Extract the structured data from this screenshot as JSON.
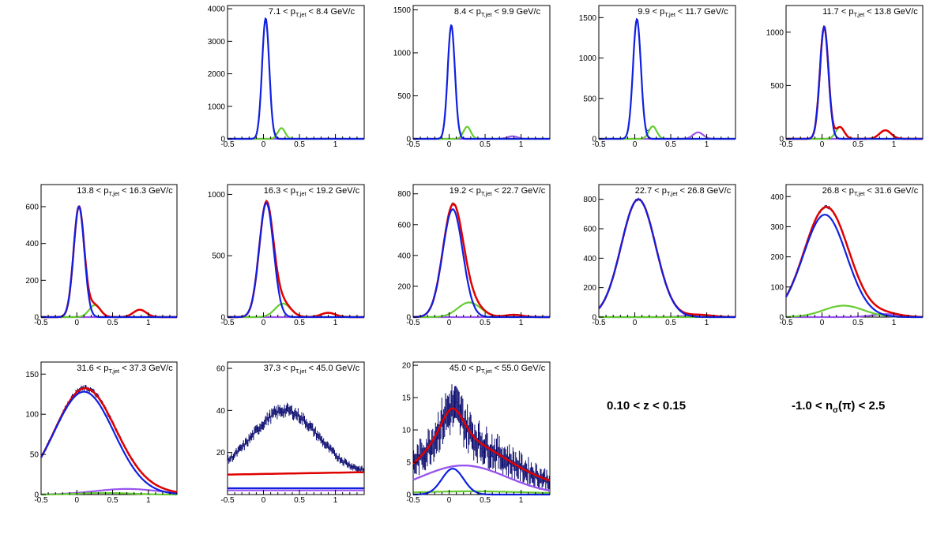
{
  "annotations": {
    "z_range": "0.10 < z < 0.15",
    "nsigma_left": "-1.0 < n",
    "nsigma_sub": "σ",
    "nsigma_right": "(π) < 2.5"
  },
  "colors": {
    "data": "#0a0a6e",
    "total": "#e00000",
    "pion": "#1020e0",
    "kaon": "#66cc33",
    "proton": "#9955ee"
  },
  "chart_data": [
    {
      "type": "line",
      "title_pre": "7.1 < p",
      "title_sub": "T,jet",
      "title_post": " < 8.4 GeV/c",
      "xlim": [
        -0.5,
        1.4
      ],
      "ylim": [
        0,
        4100
      ],
      "xticks": [
        "-0.5",
        "0",
        "0.5",
        "1"
      ],
      "yticks": [
        {
          "v": 0,
          "l": "0"
        },
        {
          "v": 1000,
          "l": "1000"
        },
        {
          "v": 2000,
          "l": "2000"
        },
        {
          "v": 3000,
          "l": "3000"
        },
        {
          "v": 4000,
          "l": "4000"
        }
      ],
      "comps": {
        "pion": [
          3700,
          0.03,
          0.05
        ],
        "kaon": [
          330,
          0.25,
          0.05
        ],
        "proton": [
          8,
          0.88,
          0.07
        ]
      },
      "show_total": false,
      "flat": 0,
      "noise": 0.04
    },
    {
      "type": "line",
      "title_pre": "8.4 < p",
      "title_sub": "T,jet",
      "title_post": " < 9.9 GeV/c",
      "xlim": [
        -0.5,
        1.4
      ],
      "ylim": [
        0,
        1550
      ],
      "xticks": [
        "-0.5",
        "0",
        "0.5",
        "1"
      ],
      "yticks": [
        {
          "v": 0,
          "l": "0"
        },
        {
          "v": 500,
          "l": "500"
        },
        {
          "v": 1000,
          "l": "1000"
        },
        {
          "v": 1500,
          "l": "1500"
        }
      ],
      "comps": {
        "pion": [
          1320,
          0.03,
          0.05
        ],
        "kaon": [
          140,
          0.25,
          0.05
        ],
        "proton": [
          30,
          0.88,
          0.07
        ]
      },
      "show_total": false,
      "flat": 0,
      "noise": 0.05
    },
    {
      "type": "line",
      "title_pre": "9.9 < p",
      "title_sub": "T,jet",
      "title_post": " < 11.7 GeV/c",
      "xlim": [
        -0.5,
        1.4
      ],
      "ylim": [
        0,
        1650
      ],
      "xticks": [
        "-0.5",
        "0",
        "0.5",
        "1"
      ],
      "yticks": [
        {
          "v": 0,
          "l": "0"
        },
        {
          "v": 500,
          "l": "500"
        },
        {
          "v": 1000,
          "l": "1000"
        },
        {
          "v": 1500,
          "l": "1500"
        }
      ],
      "comps": {
        "pion": [
          1480,
          0.03,
          0.055
        ],
        "kaon": [
          155,
          0.25,
          0.055
        ],
        "proton": [
          80,
          0.88,
          0.07
        ]
      },
      "show_total": false,
      "flat": 0,
      "noise": 0.05
    },
    {
      "type": "line",
      "title_pre": "11.7 < p",
      "title_sub": "T,jet",
      "title_post": " < 13.8 GeV/c",
      "xlim": [
        -0.5,
        1.4
      ],
      "ylim": [
        0,
        1250
      ],
      "xticks": [
        "-0.5",
        "0",
        "0.5",
        "1"
      ],
      "yticks": [
        {
          "v": 0,
          "l": "0"
        },
        {
          "v": 500,
          "l": "500"
        },
        {
          "v": 1000,
          "l": "1000"
        }
      ],
      "comps": {
        "pion": [
          1050,
          0.03,
          0.06
        ],
        "kaon": [
          110,
          0.25,
          0.06
        ],
        "proton": [
          80,
          0.88,
          0.08
        ]
      },
      "show_total": true,
      "flat": 0,
      "noise": 0.06
    },
    {
      "type": "line",
      "title_pre": "13.8 < p",
      "title_sub": "T,jet",
      "title_post": " < 16.3 GeV/c",
      "xlim": [
        -0.5,
        1.4
      ],
      "ylim": [
        0,
        720
      ],
      "xticks": [
        "-0.5",
        "0",
        "0.5",
        "1"
      ],
      "yticks": [
        {
          "v": 0,
          "l": "0"
        },
        {
          "v": 200,
          "l": "200"
        },
        {
          "v": 400,
          "l": "400"
        },
        {
          "v": 600,
          "l": "600"
        }
      ],
      "comps": {
        "pion": [
          600,
          0.03,
          0.075
        ],
        "kaon": [
          65,
          0.25,
          0.08
        ],
        "proton": [
          40,
          0.88,
          0.09
        ]
      },
      "show_total": true,
      "flat": 0,
      "noise": 0.07
    },
    {
      "type": "line",
      "title_pre": "16.3 < p",
      "title_sub": "T,jet",
      "title_post": " < 19.2 GeV/c",
      "xlim": [
        -0.5,
        1.4
      ],
      "ylim": [
        0,
        1080
      ],
      "xticks": [
        "-0.5",
        "0",
        "0.5",
        "1"
      ],
      "yticks": [
        {
          "v": 0,
          "l": "0"
        },
        {
          "v": 500,
          "l": "500"
        },
        {
          "v": 1000,
          "l": "1000"
        }
      ],
      "comps": {
        "pion": [
          930,
          0.04,
          0.1
        ],
        "kaon": [
          110,
          0.27,
          0.11
        ],
        "proton": [
          35,
          0.9,
          0.1
        ]
      },
      "show_total": true,
      "flat": 0,
      "noise": 0.06
    },
    {
      "type": "line",
      "title_pre": "19.2 < p",
      "title_sub": "T,jet",
      "title_post": " < 22.7 GeV/c",
      "xlim": [
        -0.5,
        1.4
      ],
      "ylim": [
        0,
        860
      ],
      "xticks": [
        "-0.5",
        "0",
        "0.5",
        "1"
      ],
      "yticks": [
        {
          "v": 0,
          "l": "0"
        },
        {
          "v": 200,
          "l": "200"
        },
        {
          "v": 400,
          "l": "400"
        },
        {
          "v": 600,
          "l": "600"
        },
        {
          "v": 800,
          "l": "800"
        }
      ],
      "comps": {
        "pion": [
          700,
          0.05,
          0.14
        ],
        "kaon": [
          95,
          0.28,
          0.16
        ],
        "proton": [
          15,
          0.9,
          0.12
        ]
      },
      "show_total": true,
      "flat": 0,
      "noise": 0.06
    },
    {
      "type": "line",
      "title_pre": "22.7 < p",
      "title_sub": "T,jet",
      "title_post": " < 26.8 GeV/c",
      "xlim": [
        -0.5,
        1.4
      ],
      "ylim": [
        0,
        900
      ],
      "xticks": [
        "-0.5",
        "0",
        "0.5",
        "1"
      ],
      "yticks": [
        {
          "v": 0,
          "l": "0"
        },
        {
          "v": 200,
          "l": "200"
        },
        {
          "v": 400,
          "l": "400"
        },
        {
          "v": 600,
          "l": "600"
        },
        {
          "v": 800,
          "l": "800"
        }
      ],
      "comps": {
        "pion": [
          800,
          0.05,
          0.24
        ],
        "kaon": [
          0,
          0.3,
          0.2
        ],
        "proton": [
          15,
          0.9,
          0.18
        ]
      },
      "show_total": true,
      "flat": 0,
      "noise": 0.05
    },
    {
      "type": "line",
      "title_pre": "26.8 < p",
      "title_sub": "T,jet",
      "title_post": " < 31.6 GeV/c",
      "xlim": [
        -0.5,
        1.4
      ],
      "ylim": [
        0,
        440
      ],
      "xticks": [
        "-0.5",
        "0",
        "0.5",
        "1"
      ],
      "yticks": [
        {
          "v": 0,
          "l": "0"
        },
        {
          "v": 100,
          "l": "100"
        },
        {
          "v": 200,
          "l": "200"
        },
        {
          "v": 300,
          "l": "300"
        },
        {
          "v": 400,
          "l": "400"
        }
      ],
      "comps": {
        "pion": [
          340,
          0.04,
          0.3
        ],
        "kaon": [
          38,
          0.3,
          0.28
        ],
        "proton": [
          10,
          0.9,
          0.2
        ]
      },
      "show_total": true,
      "flat": 0,
      "noise": 0.06
    },
    {
      "type": "line",
      "title_pre": "31.6 < p",
      "title_sub": "T,jet",
      "title_post": " < 37.3 GeV/c",
      "xlim": [
        -0.5,
        1.4
      ],
      "ylim": [
        0,
        165
      ],
      "xticks": [
        "-0.5",
        "0",
        "0.5",
        "1"
      ],
      "yticks": [
        {
          "v": 0,
          "l": "0"
        },
        {
          "v": 50,
          "l": "50"
        },
        {
          "v": 100,
          "l": "100"
        },
        {
          "v": 150,
          "l": "150"
        }
      ],
      "comps": {
        "pion": [
          128,
          0.1,
          0.42
        ],
        "kaon": [
          2,
          0.4,
          0.35
        ],
        "proton": [
          7,
          0.7,
          0.45
        ]
      },
      "show_total": true,
      "flat": 0,
      "noise": 0.1
    },
    {
      "type": "line",
      "title_pre": "37.3 < p",
      "title_sub": "T,jet",
      "title_post": " < 45.0 GeV/c",
      "xlim": [
        -0.5,
        1.4
      ],
      "ylim": [
        0,
        63
      ],
      "xticks": [
        "-0.5",
        "0",
        "0.5",
        "1"
      ],
      "yticks": [
        {
          "v": 20,
          "l": "20"
        },
        {
          "v": 40,
          "l": "40"
        },
        {
          "v": 60,
          "l": "60"
        }
      ],
      "comps": {
        "pion": [
          0,
          0.1,
          0.3
        ],
        "kaon": [
          0,
          0.3,
          0.3
        ],
        "proton": [
          0,
          0.8,
          0.3
        ]
      },
      "show_total": true,
      "flat": 9.5,
      "flat_slope": 0.6,
      "flat_lines": [
        {
          "c": "pion",
          "v": 3
        },
        {
          "c": "proton",
          "v": 2
        }
      ],
      "data_override": {
        "shape": [
          30,
          0.3,
          0.45
        ],
        "base": 10
      },
      "noise": 0.25
    },
    {
      "type": "line",
      "title_pre": "45.0 < p",
      "title_sub": "T,jet",
      "title_post": " < 55.0 GeV/c",
      "xlim": [
        -0.5,
        1.4
      ],
      "ylim": [
        0,
        20.5
      ],
      "xticks": [
        "-0.5",
        "0",
        "0.5",
        "1"
      ],
      "yticks": [
        {
          "v": 0,
          "l": "0"
        },
        {
          "v": 5,
          "l": "5"
        },
        {
          "v": 10,
          "l": "10"
        },
        {
          "v": 15,
          "l": "15"
        },
        {
          "v": 20,
          "l": "20"
        }
      ],
      "comps": {
        "pion": [
          4,
          0.05,
          0.15
        ],
        "kaon": [
          0.5,
          0.3,
          0.9
        ],
        "proton": [
          4.5,
          0.2,
          0.6
        ]
      },
      "show_total": true,
      "flat": 0,
      "tail": true,
      "noise": 0.9
    }
  ]
}
